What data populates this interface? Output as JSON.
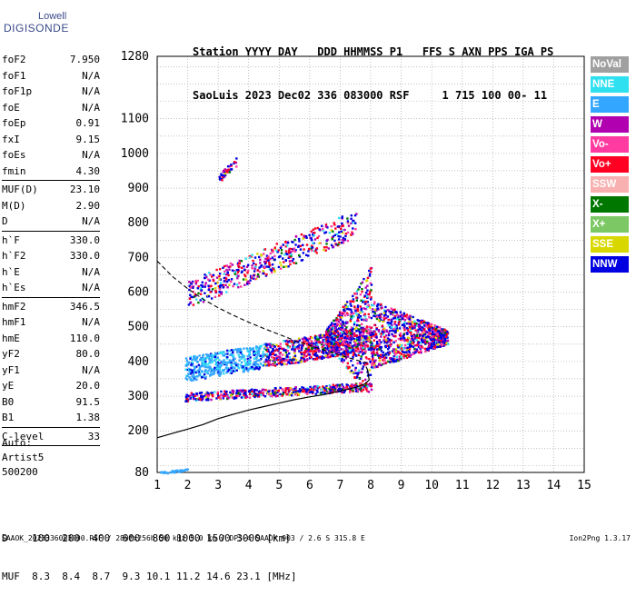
{
  "logo": {
    "line1": "Lowell",
    "line2": "DIGISONDE"
  },
  "header": {
    "line1": "Station YYYY DAY   DDD HHMMSS P1   FFS S AXN PPS IGA PS",
    "line2": "SaoLuis 2023 Dec02 336 083000 RSF     1 715 100 00- 11"
  },
  "params": [
    {
      "k": "foF2",
      "v": "7.950"
    },
    {
      "k": "foF1",
      "v": "N/A"
    },
    {
      "k": "foF1p",
      "v": "N/A"
    },
    {
      "k": "foE",
      "v": "N/A"
    },
    {
      "k": "foEp",
      "v": "0.91"
    },
    {
      "k": "fxI",
      "v": "9.15"
    },
    {
      "k": "foEs",
      "v": "N/A"
    },
    {
      "k": "fmin",
      "v": "4.30"
    },
    {
      "sep": true
    },
    {
      "k": "MUF(D)",
      "v": "23.10"
    },
    {
      "k": "M(D)",
      "v": "2.90"
    },
    {
      "k": "D",
      "v": "N/A"
    },
    {
      "sep": true
    },
    {
      "k": "h`F",
      "v": "330.0"
    },
    {
      "k": "h`F2",
      "v": "330.0"
    },
    {
      "k": "h`E",
      "v": "N/A"
    },
    {
      "k": "h`Es",
      "v": "N/A"
    },
    {
      "sep": true
    },
    {
      "k": "hmF2",
      "v": "346.5"
    },
    {
      "k": "hmF1",
      "v": "N/A"
    },
    {
      "k": "hmE",
      "v": "110.0"
    },
    {
      "k": "yF2",
      "v": "80.0"
    },
    {
      "k": "yF1",
      "v": "N/A"
    },
    {
      "k": "yE",
      "v": "20.0"
    },
    {
      "k": "B0",
      "v": "91.5"
    },
    {
      "k": "B1",
      "v": "1.38"
    },
    {
      "sep": true
    },
    {
      "k": "C-level",
      "v": "33"
    },
    {
      "sep": true
    }
  ],
  "auto": {
    "line1": "Auto:",
    "line2": "Artist5",
    "line3": "500200"
  },
  "legend": [
    {
      "label": "NoVal",
      "color": "#a0a0a0"
    },
    {
      "label": "NNE",
      "color": "#2ee0f0"
    },
    {
      "label": "E",
      "color": "#33a6ff"
    },
    {
      "label": "W",
      "color": "#b000b0"
    },
    {
      "label": "Vo-",
      "color": "#ff3aa0"
    },
    {
      "label": "Vo+",
      "color": "#ff0022"
    },
    {
      "label": "SSW",
      "color": "#f8b0b0"
    },
    {
      "label": "X-",
      "color": "#007800"
    },
    {
      "label": "X+",
      "color": "#7cc864"
    },
    {
      "label": "SSE",
      "color": "#d8d800"
    },
    {
      "label": "NNW",
      "color": "#0000e0"
    }
  ],
  "muf_table": {
    "line1": "D    100  200  400  600  800 1000 1500 3000 [km]",
    "line2": "MUF  8.3  8.4  8.7  9.3 10.1 11.2 14.6 23.1 [MHz]"
  },
  "footer": "SAAOK_2023336083000.RSF / 280fx256h 50 kHz 5.0 km / DPS-4 SAAOK 903 / 2.6 S 315.8 E",
  "version": "Ion2Png 1.3.17",
  "chart_data": {
    "type": "scatter",
    "x": {
      "min": 1,
      "max": 15,
      "ticks": [
        1,
        2,
        3,
        4,
        5,
        6,
        7,
        8,
        9,
        10,
        11,
        12,
        13,
        14,
        15
      ]
    },
    "y": {
      "min": 80,
      "max": 1280,
      "ticks": [
        80,
        200,
        300,
        400,
        500,
        600,
        700,
        800,
        900,
        1000,
        1100,
        1280
      ]
    },
    "grid": true,
    "profile_curve": [
      [
        1.0,
        180
      ],
      [
        1.6,
        195
      ],
      [
        2.0,
        205
      ],
      [
        2.5,
        218
      ],
      [
        3.0,
        235
      ],
      [
        3.5,
        248
      ],
      [
        4.0,
        260
      ],
      [
        4.5,
        270
      ],
      [
        5.0,
        280
      ],
      [
        5.5,
        290
      ],
      [
        6.0,
        298
      ],
      [
        6.5,
        305
      ],
      [
        7.0,
        315
      ],
      [
        7.5,
        325
      ],
      [
        7.8,
        335
      ],
      [
        7.95,
        346.5
      ],
      [
        7.9,
        375
      ],
      [
        7.85,
        385
      ]
    ],
    "dashed_curve": [
      [
        1.0,
        690
      ],
      [
        1.5,
        645
      ],
      [
        2.0,
        610
      ],
      [
        2.5,
        580
      ],
      [
        3.0,
        555
      ],
      [
        3.5,
        533
      ],
      [
        4.0,
        513
      ],
      [
        4.5,
        495
      ],
      [
        5.0,
        478
      ],
      [
        5.5,
        461
      ],
      [
        6.0,
        446
      ],
      [
        6.5,
        432
      ],
      [
        7.0,
        418
      ],
      [
        7.5,
        405
      ],
      [
        7.9,
        395
      ]
    ],
    "clusters": [
      {
        "name": "F-trace-O",
        "x": [
          1.9,
          8.0
        ],
        "y_start": 300,
        "y_end": 330,
        "spread": 12
      },
      {
        "name": "F-trace-upper",
        "x": [
          1.9,
          8.0
        ],
        "y_start": 380,
        "y_end": 470,
        "spread": 35
      },
      {
        "name": "spread-F",
        "x": [
          6.5,
          10.5
        ],
        "y_start": 340,
        "y_end": 700,
        "spread": 0
      },
      {
        "name": "second-hop",
        "x": [
          2.0,
          7.5
        ],
        "y_start": 595,
        "y_end": 800,
        "spread": 40
      },
      {
        "name": "low-sporadic",
        "x": [
          1.0,
          2.0
        ],
        "y_start": 80,
        "y_end": 90,
        "spread": 3
      },
      {
        "name": "high-echo",
        "x": [
          3.0,
          3.6
        ],
        "y_start": 930,
        "y_end": 980,
        "spread": 12
      }
    ]
  }
}
